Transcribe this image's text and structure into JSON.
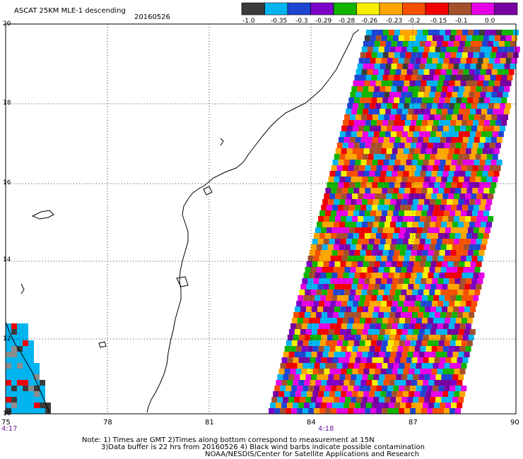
{
  "header": {
    "title": "ASCAT 25KM MLE-1 descending",
    "date": "20160526"
  },
  "legend": {
    "colors": [
      "#3b3b3b",
      "#00b4f0",
      "#1e46d2",
      "#7d00c8",
      "#12b400",
      "#f6f000",
      "#ffa500",
      "#f55000",
      "#f00000",
      "#a5502d",
      "#e600e6",
      "#7800a0"
    ],
    "labels": [
      "-1.0",
      "-0.35",
      "-0.3",
      "-0.29",
      "-0.28",
      "-0.26",
      "-0.23",
      "-0.2",
      "-0.15",
      "-0.1",
      "0.0"
    ]
  },
  "map": {
    "lat_labels": [
      "20",
      "18",
      "16",
      "14",
      "12",
      "10"
    ],
    "lon_labels": [
      "75",
      "78",
      "81",
      "84",
      "87",
      "90"
    ],
    "time_labels": [
      "4:17",
      "4:18"
    ],
    "lon_range": [
      75,
      90
    ],
    "lat_range": [
      10,
      20
    ]
  },
  "notes": {
    "line1": "Note: 1) Times are GMT 2)Times along bottom correspond to measurement at 15N",
    "line2": "3)Data buffer is 22 hrs from 20160526 4) Black wind barbs indicate possible contamination",
    "line3": "NOAA/NESDIS/Center for Satellite Applications and Research"
  }
}
